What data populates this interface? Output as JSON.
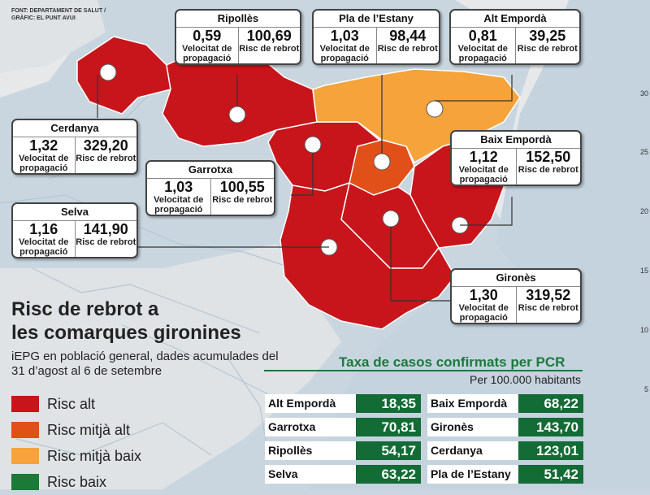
{
  "source": [
    "FONT: DEPARTAMENT DE SALUT /",
    "GRÀFIC: EL PUNT AVUI"
  ],
  "title_line1": "Risc de rebrot a",
  "title_line2": "les comarques  gironines",
  "subtitle": "iEPG en població general, dades acumulades del 31 d’agost al 6 de setembre",
  "legend": [
    {
      "label": "Risc alt",
      "color": "#c8151b"
    },
    {
      "label": "Risc mitjà alt",
      "color": "#e2501a"
    },
    {
      "label": "Risc mitjà baix",
      "color": "#f5a33a"
    },
    {
      "label": "Risc baix",
      "color": "#1b7a37"
    }
  ],
  "labels": {
    "velocitat": "Velocitat de propagació",
    "risc": "Risc de rebrot"
  },
  "comarques": [
    {
      "name": "Ripollès",
      "velocitat": "0,59",
      "risc": "100,69"
    },
    {
      "name": "Pla de l’Estany",
      "velocitat": "1,03",
      "risc": "98,44"
    },
    {
      "name": "Alt Empordà",
      "velocitat": "0,81",
      "risc": "39,25"
    },
    {
      "name": "Cerdanya",
      "velocitat": "1,32",
      "risc": "329,20"
    },
    {
      "name": "Baix Empordà",
      "velocitat": "1,12",
      "risc": "152,50"
    },
    {
      "name": "Garrotxa",
      "velocitat": "1,03",
      "risc": "100,55"
    },
    {
      "name": "Selva",
      "velocitat": "1,16",
      "risc": "141,90"
    },
    {
      "name": "Gironès",
      "velocitat": "1,30",
      "risc": "319,52"
    }
  ],
  "pcr": {
    "title": "Taxa de casos confirmats per PCR",
    "subtitle": "Per 100.000 habitants",
    "rows": [
      {
        "left_name": "Alt Empordà",
        "left_value": "18,35",
        "right_name": "Baix Empordà",
        "right_value": "68,22"
      },
      {
        "left_name": "Garrotxa",
        "left_value": "70,81",
        "right_name": "Gironès",
        "right_value": "143,70"
      },
      {
        "left_name": "Ripollès",
        "left_value": "54,17",
        "right_name": "Cerdanya",
        "right_value": "123,01"
      },
      {
        "left_name": "Selva",
        "left_value": "63,22",
        "right_name": "Pla de l’Estany",
        "right_value": "51,42"
      }
    ]
  },
  "axis_ticks": [
    "30",
    "25",
    "20",
    "15",
    "10",
    "5"
  ]
}
